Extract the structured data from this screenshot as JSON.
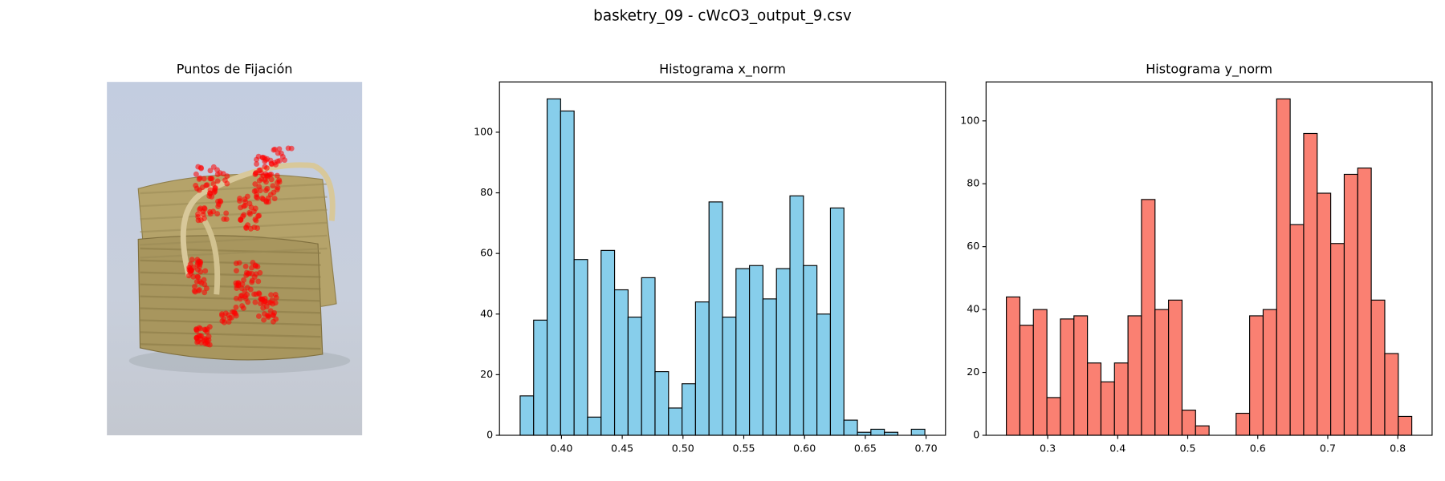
{
  "suptitle": "basketry_09 - cWcO3_output_9.csv",
  "chart_data": [
    {
      "type": "image",
      "title": "Puntos de Fijación"
    },
    {
      "type": "histogram",
      "title": "Histograma x_norm",
      "color": "#87ceeb",
      "edgecolor": "#000000",
      "bins": [
        0.366,
        0.3771,
        0.3882,
        0.3993,
        0.4104,
        0.4215,
        0.4326,
        0.4437,
        0.4548,
        0.4659,
        0.477,
        0.4881,
        0.4992,
        0.5103,
        0.5214,
        0.5325,
        0.5436,
        0.5547,
        0.5658,
        0.5769,
        0.588,
        0.5991,
        0.6102,
        0.6213,
        0.6324,
        0.6435,
        0.6546,
        0.6657,
        0.6768,
        0.6879,
        0.699
      ],
      "values": [
        13,
        38,
        111,
        107,
        58,
        6,
        61,
        48,
        39,
        52,
        21,
        9,
        17,
        44,
        77,
        39,
        55,
        56,
        45,
        55,
        79,
        56,
        40,
        75,
        5,
        1,
        2,
        1,
        0,
        2
      ],
      "xlim": [
        0.349,
        0.716
      ],
      "ylim": [
        0,
        116.6
      ],
      "xticks": [
        {
          "value": 0.4,
          "label": "0.40"
        },
        {
          "value": 0.45,
          "label": "0.45"
        },
        {
          "value": 0.5,
          "label": "0.50"
        },
        {
          "value": 0.55,
          "label": "0.55"
        },
        {
          "value": 0.6,
          "label": "0.60"
        },
        {
          "value": 0.65,
          "label": "0.65"
        },
        {
          "value": 0.7,
          "label": "0.70"
        }
      ],
      "yticks": [
        0,
        20,
        40,
        60,
        80,
        100
      ]
    },
    {
      "type": "histogram",
      "title": "Histograma y_norm",
      "color": "#fa8072",
      "edgecolor": "#000000",
      "bins": [
        0.241,
        0.2603,
        0.2796,
        0.2989,
        0.3182,
        0.3375,
        0.3568,
        0.3761,
        0.3954,
        0.4147,
        0.434,
        0.4533,
        0.4726,
        0.4919,
        0.5112,
        0.5305,
        0.5498,
        0.5691,
        0.5884,
        0.6077,
        0.627,
        0.6463,
        0.6656,
        0.6849,
        0.7042,
        0.7235,
        0.7428,
        0.7621,
        0.7814,
        0.8007,
        0.82
      ],
      "values": [
        44,
        35,
        40,
        12,
        37,
        38,
        23,
        17,
        23,
        38,
        75,
        40,
        43,
        8,
        3,
        0,
        0,
        7,
        38,
        40,
        107,
        67,
        96,
        77,
        61,
        83,
        85,
        43,
        26,
        6
      ],
      "xlim": [
        0.212,
        0.849
      ],
      "ylim": [
        0,
        112.4
      ],
      "xticks": [
        0.3,
        0.4,
        0.5,
        0.6,
        0.7,
        0.8
      ],
      "yticks": [
        0,
        20,
        40,
        60,
        80,
        100
      ]
    }
  ]
}
